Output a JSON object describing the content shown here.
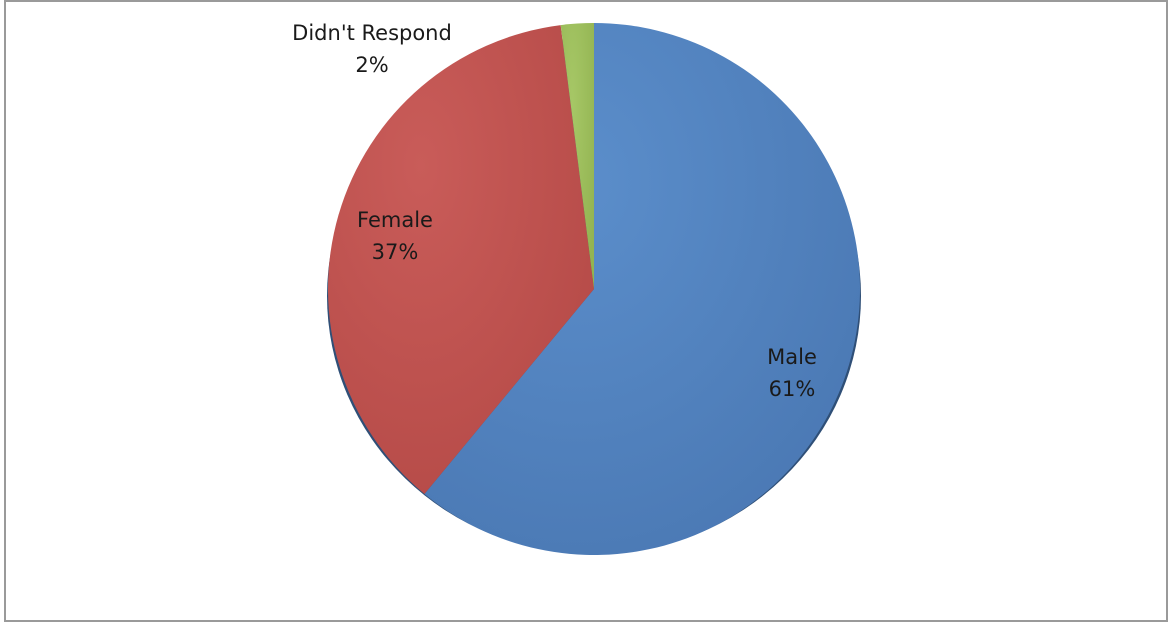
{
  "chart_data": {
    "type": "pie",
    "title": "",
    "categories": [
      "Male",
      "Female",
      "Didn't Respond"
    ],
    "values": [
      61,
      37,
      2
    ],
    "value_labels": [
      "61%",
      "37%",
      "2%"
    ],
    "start_angle_deg": 0,
    "direction": "clockwise",
    "colors": [
      "#4f81bd",
      "#c0504d",
      "#9bbb59"
    ],
    "legend": "none"
  }
}
